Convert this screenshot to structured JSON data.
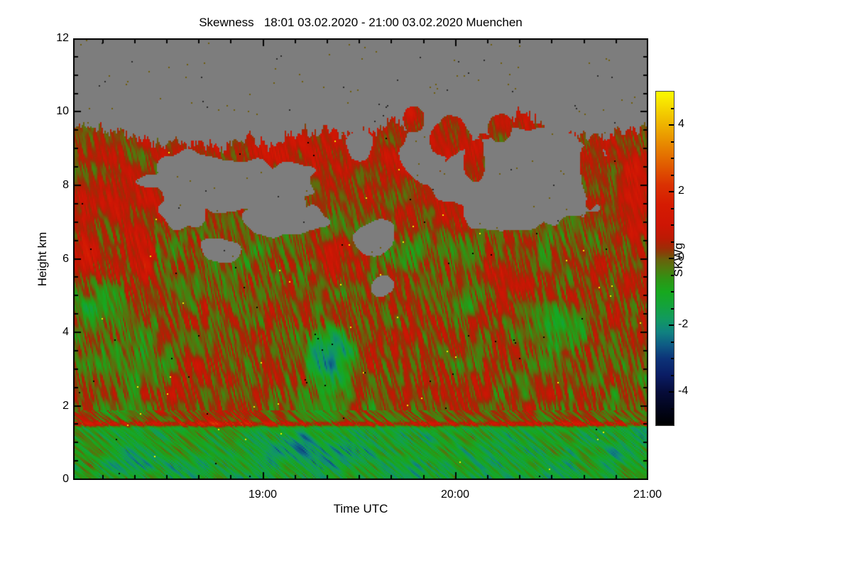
{
  "title": "Skewness   18:01 03.02.2020 - 21:00 03.02.2020 Muenchen",
  "axes": {
    "x_label": "Time UTC",
    "y_label": "Height km",
    "colorbar_label": "SKWg"
  },
  "chart_data": {
    "type": "heatmap",
    "title": "Skewness   18:01 03.02.2020 - 21:00 03.02.2020 Muenchen",
    "xlabel": "Time UTC",
    "ylabel": "Height km",
    "x_start_time": "18:01",
    "x_end_time": "21:00",
    "x_total_minutes": 179,
    "x_major_ticks": [
      {
        "label": "19:00",
        "minute": 60
      },
      {
        "label": "20:00",
        "minute": 120
      },
      {
        "label": "21:00",
        "minute": 180
      }
    ],
    "x_minor_step_minutes": 10,
    "y_range_km": [
      0,
      12
    ],
    "y_major_ticks": [
      0,
      2,
      4,
      6,
      8,
      10,
      12
    ],
    "y_minor_step_km": 0.5,
    "colorbar": {
      "label": "SKWg",
      "range": [
        -5,
        5
      ],
      "major_ticks": [
        -4,
        -2,
        0,
        2,
        4
      ],
      "minor_step": 0.5
    },
    "no_data_color": "#7d7d7d",
    "background_color": "#ffffff",
    "axis_color": "#000000",
    "colormap_stops": [
      [
        -5.0,
        "#000000"
      ],
      [
        -4.5,
        "#02051c"
      ],
      [
        -4.0,
        "#060c3a"
      ],
      [
        -3.5,
        "#0a1c64"
      ],
      [
        -3.0,
        "#0c3378"
      ],
      [
        -2.6,
        "#0e5a84"
      ],
      [
        -2.2,
        "#108280"
      ],
      [
        -1.8,
        "#119a5e"
      ],
      [
        -1.4,
        "#14a33a"
      ],
      [
        -1.0,
        "#17a81e"
      ],
      [
        -0.6,
        "#309214"
      ],
      [
        -0.3,
        "#50790e"
      ],
      [
        -0.1,
        "#63670c"
      ],
      [
        0.0,
        "#6d5c0b"
      ],
      [
        0.1,
        "#7d4a09"
      ],
      [
        0.3,
        "#9c2d06"
      ],
      [
        0.6,
        "#bc1a04"
      ],
      [
        1.0,
        "#ce1504"
      ],
      [
        1.6,
        "#d51b02"
      ],
      [
        2.2,
        "#da3102"
      ],
      [
        2.8,
        "#e15c00"
      ],
      [
        3.4,
        "#e78700"
      ],
      [
        4.0,
        "#eeb200"
      ],
      [
        4.6,
        "#f6dd00"
      ],
      [
        5.0,
        "#fbf900"
      ]
    ],
    "texture": {
      "base": 0.12,
      "streak_amp": 1.25,
      "patch_amp": 0.85,
      "large_amp": 0.7
    },
    "speckle_colors": [
      "#f8f000",
      "#000000"
    ],
    "top_boundary": [
      [
        0,
        9.75
      ],
      [
        10,
        9.6
      ],
      [
        20,
        9.35
      ],
      [
        28,
        9.05
      ],
      [
        35,
        9.25
      ],
      [
        45,
        9.1
      ],
      [
        55,
        9.25
      ],
      [
        62,
        9.1
      ],
      [
        70,
        9.35
      ],
      [
        80,
        9.55
      ],
      [
        88,
        9.3
      ],
      [
        95,
        9.55
      ],
      [
        100,
        9.8
      ],
      [
        108,
        9.45
      ],
      [
        113,
        9.2
      ],
      [
        118,
        9.55
      ],
      [
        125,
        9.3
      ],
      [
        132,
        9.7
      ],
      [
        140,
        9.9
      ],
      [
        148,
        9.6
      ],
      [
        155,
        9.45
      ],
      [
        163,
        9.2
      ],
      [
        168,
        9.4
      ],
      [
        173,
        9.6
      ],
      [
        180,
        9.7
      ]
    ],
    "regions": [
      {
        "type": "band",
        "h0": -1.0,
        "h1": 1.62,
        "f": 0.2,
        "b": -1.15
      },
      {
        "type": "band",
        "h0": 1.42,
        "h1": 1.62,
        "f": 0.08,
        "b": 1.5
      },
      {
        "type": "band",
        "h0": 7.0,
        "h1": 10.4,
        "f": 0.6,
        "b": 0.28
      },
      {
        "type": "spot",
        "t": 75,
        "h": 0.75,
        "rt": 22,
        "rh": 0.55,
        "b": -0.75
      },
      {
        "type": "spot",
        "t": 20,
        "h": 0.55,
        "rt": 12,
        "rh": 0.45,
        "b": -0.55
      },
      {
        "type": "spot",
        "t": 130,
        "h": 0.7,
        "rt": 12,
        "rh": 0.45,
        "b": -0.45
      },
      {
        "type": "spot",
        "t": 172,
        "h": 0.6,
        "rt": 8,
        "rh": 0.5,
        "b": -0.5
      },
      {
        "type": "spot",
        "t": 81,
        "h": 3.3,
        "rt": 8.5,
        "rh": 1.05,
        "b": -1.7
      },
      {
        "type": "spot",
        "t": 78,
        "h": 3.2,
        "rt": 17,
        "rh": 1.7,
        "b": -0.55
      },
      {
        "type": "spot",
        "t": 10,
        "h": 4.7,
        "rt": 11,
        "rh": 0.9,
        "b": -0.75
      },
      {
        "type": "spot",
        "t": 22,
        "h": 3.4,
        "rt": 14,
        "rh": 1.2,
        "b": -0.45
      },
      {
        "type": "spot",
        "t": 152,
        "h": 4.2,
        "rt": 11,
        "rh": 0.75,
        "b": -1.15
      },
      {
        "type": "spot",
        "t": 150,
        "h": 3.8,
        "rt": 18,
        "rh": 1.4,
        "b": -0.35
      },
      {
        "type": "spot",
        "t": 4,
        "h": 6.3,
        "rt": 5,
        "rh": 1.0,
        "b": 0.95
      },
      {
        "type": "spot",
        "t": 22,
        "h": 6.2,
        "rt": 5,
        "rh": 0.8,
        "b": 0.75
      },
      {
        "type": "spot",
        "t": 84,
        "h": 6.1,
        "rt": 11,
        "rh": 1.0,
        "b": 0.65
      },
      {
        "type": "spot",
        "t": 137,
        "h": 5.9,
        "rt": 11,
        "rh": 0.9,
        "b": 0.7
      },
      {
        "type": "spot",
        "t": 176,
        "h": 7.6,
        "rt": 6,
        "rh": 1.3,
        "b": 1.1
      }
    ],
    "gray_blobs": [
      {
        "t": 52,
        "h": 8.0,
        "rt": 28,
        "rh": 0.7,
        "seed": 201
      },
      {
        "t": 38,
        "h": 8.45,
        "rt": 12,
        "rh": 0.5,
        "seed": 202
      },
      {
        "t": 35,
        "h": 7.3,
        "rt": 7,
        "rh": 0.5,
        "seed": 203
      },
      {
        "t": 66,
        "h": 7.1,
        "rt": 13,
        "rh": 0.45,
        "seed": 204
      },
      {
        "t": 47,
        "h": 6.25,
        "rt": 7,
        "rh": 0.35,
        "seed": 205
      },
      {
        "t": 95,
        "h": 6.6,
        "rt": 6,
        "rh": 0.5,
        "seed": 206
      },
      {
        "t": 97,
        "h": 5.25,
        "rt": 3.5,
        "rh": 0.3,
        "seed": 207
      },
      {
        "t": 110,
        "h": 8.9,
        "rt": 6.5,
        "rh": 0.75,
        "seed": 208
      },
      {
        "t": 90,
        "h": 9.05,
        "rt": 4,
        "rh": 0.45,
        "seed": 209
      },
      {
        "t": 140,
        "h": 8.3,
        "rt": 25,
        "rh": 1.45,
        "seed": 210
      },
      {
        "t": 128,
        "h": 7.3,
        "rt": 6,
        "rh": 0.5,
        "seed": 211
      }
    ],
    "data_islands": [
      {
        "t": 118,
        "h": 9.35,
        "rt": 6,
        "rh": 0.55,
        "seed": 301
      },
      {
        "t": 126,
        "h": 8.7,
        "rt": 3.5,
        "rh": 0.6,
        "seed": 302
      },
      {
        "t": 134,
        "h": 9.6,
        "rt": 4,
        "rh": 0.4,
        "seed": 303
      },
      {
        "t": 107,
        "h": 9.8,
        "rt": 3,
        "rh": 0.35,
        "seed": 304
      },
      {
        "t": 163,
        "h": 8.4,
        "rt": 4,
        "rh": 1.0,
        "seed": 305
      }
    ]
  }
}
